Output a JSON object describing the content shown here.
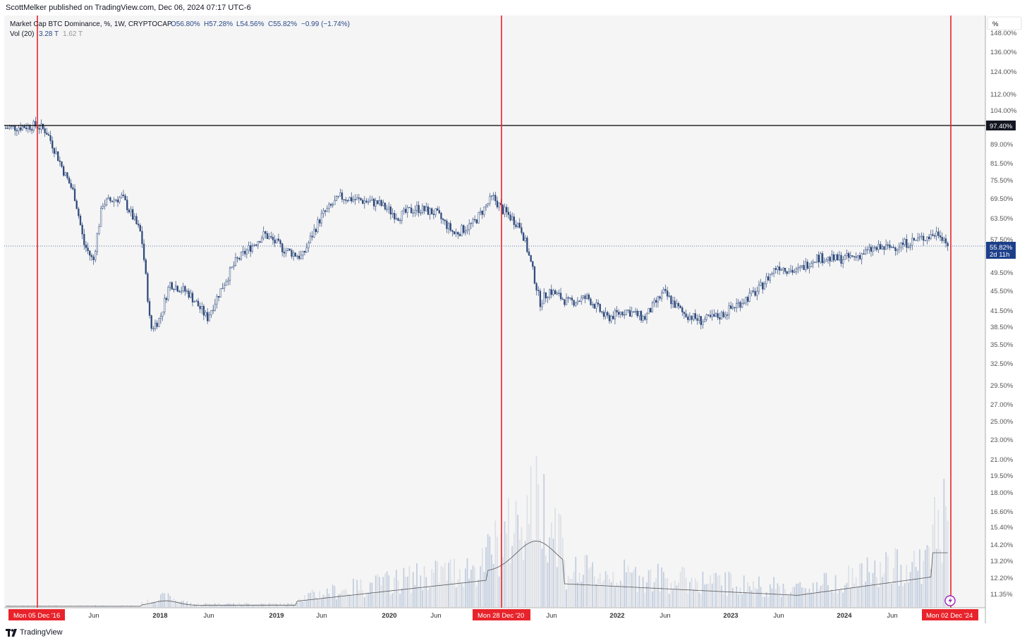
{
  "header": {
    "publisher": "ScottMelker published on TradingView.com, Dec 06, 2024 07:17 UTC-6"
  },
  "legend": {
    "symbol": "Market Cap BTC Dominance, %, 1W, CRYPTOCAP",
    "open": "O56.80%",
    "high": "H57.28%",
    "low": "L54.56%",
    "close": "C55.82%",
    "change": "−0.99 (−1.74%)",
    "vol_label": "Vol (20)",
    "vol_value": "3.28 T",
    "vol_ma": "1.62 T"
  },
  "price_axis": {
    "unit": "%",
    "ticks": [
      "148.00%",
      "136.00%",
      "124.00%",
      "112.00%",
      "104.00%",
      "89.00%",
      "81.50%",
      "75.50%",
      "69.50%",
      "63.50%",
      "57.50%",
      "49.50%",
      "45.50%",
      "41.50%",
      "38.50%",
      "35.50%",
      "32.50%",
      "29.50%",
      "27.00%",
      "25.00%",
      "23.00%",
      "21.00%",
      "19.50%",
      "18.00%",
      "16.60%",
      "15.40%",
      "14.20%",
      "13.20%",
      "12.20%",
      "11.35%"
    ],
    "horizontal_line_label": "97.40%",
    "last_price_label": "55.82%",
    "countdown_label": "2d 11h"
  },
  "time_axis": {
    "ticks": [
      {
        "label": "Jun",
        "bold": false
      },
      {
        "label": "2018",
        "bold": true
      },
      {
        "label": "Jun",
        "bold": false
      },
      {
        "label": "2019",
        "bold": true
      },
      {
        "label": "Jun",
        "bold": false
      },
      {
        "label": "2020",
        "bold": true
      },
      {
        "label": "Jun",
        "bold": false
      },
      {
        "label": "Jun",
        "bold": false
      },
      {
        "label": "2022",
        "bold": true
      },
      {
        "label": "Jun",
        "bold": false
      },
      {
        "label": "2023",
        "bold": true
      },
      {
        "label": "Jun",
        "bold": false
      },
      {
        "label": "2024",
        "bold": true
      },
      {
        "label": "Jun",
        "bold": false
      }
    ],
    "markers": [
      "Mon 05 Dec '16",
      "Mon 28 Dec '20",
      "Mon 02 Dec '24"
    ]
  },
  "footer": {
    "brand": "TradingView"
  },
  "chart_data": {
    "type": "candlestick",
    "title": "Market Cap BTC Dominance, %, 1W, CRYPTOCAP",
    "y_scale": "log",
    "ylim": [
      11,
      150
    ],
    "horizontal_line": 97.4,
    "vertical_markers": [
      "2016-12-05",
      "2020-12-28",
      "2024-12-02"
    ],
    "series": [
      {
        "name": "BTC Dominance (approx. weekly close)",
        "x": [
          "2016-08",
          "2016-12",
          "2017-01",
          "2017-02",
          "2017-03",
          "2017-04",
          "2017-05",
          "2017-06",
          "2017-07",
          "2017-09",
          "2017-11",
          "2017-12",
          "2018-01",
          "2018-02",
          "2018-04",
          "2018-06",
          "2018-09",
          "2018-12",
          "2019-02",
          "2019-04",
          "2019-06",
          "2019-08",
          "2019-10",
          "2019-12",
          "2020-02",
          "2020-04",
          "2020-06",
          "2020-08",
          "2020-10",
          "2020-12",
          "2021-01",
          "2021-03",
          "2021-05",
          "2021-06",
          "2021-08",
          "2021-10",
          "2021-12",
          "2022-02",
          "2022-04",
          "2022-06",
          "2022-08",
          "2022-10",
          "2022-12",
          "2023-02",
          "2023-04",
          "2023-06",
          "2023-08",
          "2023-10",
          "2023-12",
          "2024-02",
          "2024-04",
          "2024-06",
          "2024-08",
          "2024-10",
          "2024-11",
          "2024-12"
        ],
        "values": [
          96.0,
          97.4,
          95.0,
          86.0,
          78.0,
          71.0,
          56.5,
          52.0,
          68.0,
          70.0,
          59.0,
          38.0,
          40.0,
          47.0,
          45.0,
          40.0,
          52.0,
          59.0,
          55.0,
          53.0,
          64.0,
          70.0,
          69.0,
          68.0,
          64.0,
          66.5,
          65.0,
          59.0,
          62.0,
          70.0,
          66.0,
          61.0,
          43.0,
          45.5,
          43.0,
          44.0,
          40.0,
          41.5,
          40.0,
          45.0,
          41.0,
          39.5,
          40.5,
          43.0,
          45.5,
          51.0,
          49.5,
          53.0,
          52.5,
          53.0,
          55.0,
          55.5,
          57.0,
          58.5,
          59.5,
          55.82
        ]
      }
    ],
    "volume": {
      "name": "Vol (20)",
      "last": "3.28 T",
      "ma": "1.62 T"
    }
  }
}
